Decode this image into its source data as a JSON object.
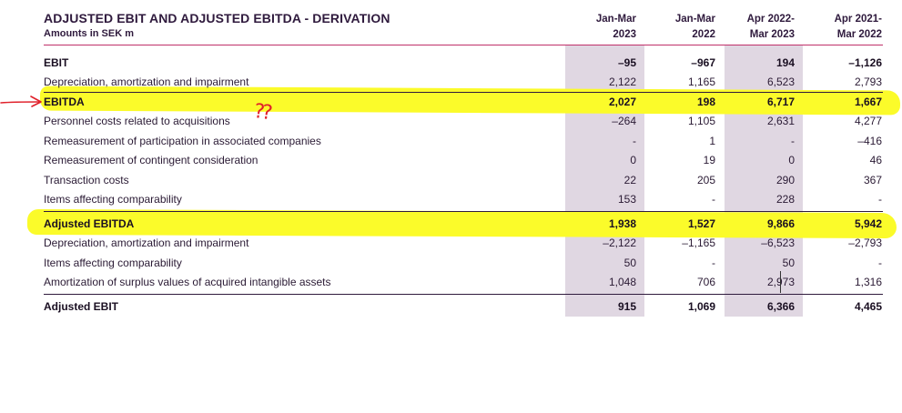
{
  "header": {
    "title": "ADJUSTED EBIT AND ADJUSTED EBITDA - DERIVATION",
    "subtitle": "Amounts in SEK m"
  },
  "columns": [
    {
      "line1": "Jan-Mar",
      "line2": "2023"
    },
    {
      "line1": "Jan-Mar",
      "line2": "2022"
    },
    {
      "line1": "Apr 2022-",
      "line2": "Mar 2023"
    },
    {
      "line1": "Apr 2021-",
      "line2": "Mar 2022"
    }
  ],
  "rows": [
    {
      "label": "EBIT",
      "values": [
        "–95",
        "–967",
        "194",
        "–1,126"
      ]
    },
    {
      "label": "Depreciation, amortization and impairment",
      "values": [
        "2,122",
        "1,165",
        "6,523",
        "2,793"
      ]
    },
    {
      "label": "EBITDA",
      "values": [
        "2,027",
        "198",
        "6,717",
        "1,667"
      ]
    },
    {
      "label": "Personnel costs related to acquisitions",
      "values": [
        "–264",
        "1,105",
        "2,631",
        "4,277"
      ]
    },
    {
      "label": "Remeasurement of participation in associated companies",
      "values": [
        "-",
        "1",
        "-",
        "–416"
      ]
    },
    {
      "label": "Remeasurement of contingent consideration",
      "values": [
        "0",
        "19",
        "0",
        "46"
      ]
    },
    {
      "label": "Transaction costs",
      "values": [
        "22",
        "205",
        "290",
        "367"
      ]
    },
    {
      "label": "Items affecting comparability",
      "values": [
        "153",
        "-",
        "228",
        "-"
      ]
    },
    {
      "label": "Adjusted EBITDA",
      "values": [
        "1,938",
        "1,527",
        "9,866",
        "5,942"
      ]
    },
    {
      "label": "Depreciation, amortization and impairment",
      "values": [
        "–2,122",
        "–1,165",
        "–6,523",
        "–2,793"
      ]
    },
    {
      "label": "Items affecting comparability",
      "values": [
        "50",
        "-",
        "50",
        "-"
      ]
    },
    {
      "label": "Amortization of surplus values of acquired intangible assets",
      "values": [
        "1,048",
        "706",
        "2,973",
        "1,316"
      ]
    },
    {
      "label": "Adjusted EBIT",
      "values": [
        "915",
        "1,069",
        "6,366",
        "4,465"
      ]
    }
  ],
  "annotations": {
    "question_marks": "??",
    "highlight_color": "#fbfb2a",
    "pen_color": "#e0202a"
  }
}
